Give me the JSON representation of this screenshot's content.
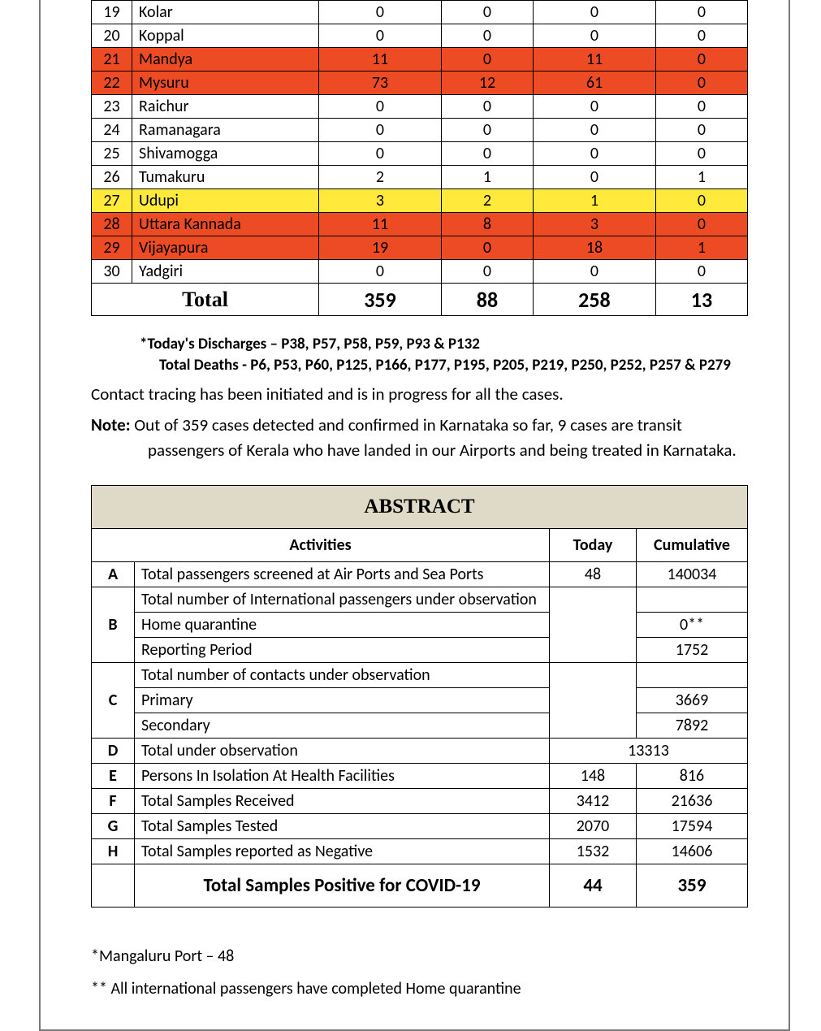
{
  "colors": {
    "highlight_red": "#ed4b23",
    "highlight_yellow": "#ffe93b",
    "abstract_header_bg": "#dedac7",
    "border": "#000000",
    "page_border": "#7a7a7a"
  },
  "district_table": {
    "col_widths_pct": [
      6,
      28,
      18,
      16,
      18,
      14
    ],
    "rows": [
      {
        "n": "19",
        "name": "Kolar",
        "v": [
          "0",
          "0",
          "0",
          "0"
        ],
        "hl": null
      },
      {
        "n": "20",
        "name": "Koppal",
        "v": [
          "0",
          "0",
          "0",
          "0"
        ],
        "hl": null
      },
      {
        "n": "21",
        "name": "Mandya",
        "v": [
          "11",
          "0",
          "11",
          "0"
        ],
        "hl": "red"
      },
      {
        "n": "22",
        "name": "Mysuru",
        "v": [
          "73",
          "12",
          "61",
          "0"
        ],
        "hl": "red"
      },
      {
        "n": "23",
        "name": "Raichur",
        "v": [
          "0",
          "0",
          "0",
          "0"
        ],
        "hl": null
      },
      {
        "n": "24",
        "name": "Ramanagara",
        "v": [
          "0",
          "0",
          "0",
          "0"
        ],
        "hl": null
      },
      {
        "n": "25",
        "name": "Shivamogga",
        "v": [
          "0",
          "0",
          "0",
          "0"
        ],
        "hl": null
      },
      {
        "n": "26",
        "name": "Tumakuru",
        "v": [
          "2",
          "1",
          "0",
          "1"
        ],
        "hl": null
      },
      {
        "n": "27",
        "name": "Udupi",
        "v": [
          "3",
          "2",
          "1",
          "0"
        ],
        "hl": "yellow"
      },
      {
        "n": "28",
        "name": "Uttara Kannada",
        "v": [
          "11",
          "8",
          "3",
          "0"
        ],
        "hl": "red"
      },
      {
        "n": "29",
        "name": "Vijayapura",
        "v": [
          "19",
          "0",
          "18",
          "1"
        ],
        "hl": "red"
      },
      {
        "n": "30",
        "name": "Yadgiri",
        "v": [
          "0",
          "0",
          "0",
          "0"
        ],
        "hl": null
      }
    ],
    "total_label": "Total",
    "total_values": [
      "359",
      "88",
      "258",
      "13"
    ]
  },
  "discharges_line": "*Today's Discharges – P38, P57, P58, P59, P93 & P132",
  "deaths_line": "Total Deaths - P6, P53, P60, P125, P166, P177, P195, P205, P219, P250, P252, P257 & P279",
  "contact_line": "Contact tracing has been initiated and is in progress for all the cases.",
  "note_lead": "Note:",
  "note_line1": " Out of 359 cases detected and confirmed in Karnataka so far, 9 cases are transit",
  "note_line2": "passengers of Kerala who have landed in our Airports and being treated in Karnataka.",
  "abstract": {
    "title": "ABSTRACT",
    "head_activities": "Activities",
    "head_today": "Today",
    "head_cumulative": "Cumulative",
    "rowA": {
      "code": "A",
      "act": "Total passengers screened at Air Ports and Sea Ports",
      "today": "48",
      "cum": "140034"
    },
    "rowB": {
      "code": "B",
      "act": "Total number of International passengers under observation",
      "sub1": {
        "label": "Home quarantine",
        "val": "0**"
      },
      "sub2": {
        "label": "Reporting Period",
        "val": "1752"
      }
    },
    "rowC": {
      "code": "C",
      "act": "Total number of contacts under observation",
      "sub1": {
        "label": "Primary",
        "val": "3669"
      },
      "sub2": {
        "label": "Secondary",
        "val": "7892"
      }
    },
    "rowD": {
      "code": "D",
      "act": "Total under observation",
      "wide": "13313"
    },
    "rowE": {
      "code": "E",
      "act": "Persons In Isolation At Health Facilities",
      "today": "148",
      "cum": "816"
    },
    "rowF": {
      "code": "F",
      "act": "Total Samples Received",
      "today": "3412",
      "cum": "21636"
    },
    "rowG": {
      "code": "G",
      "act": "Total Samples Tested",
      "today": "2070",
      "cum": "17594"
    },
    "rowH": {
      "code": "H",
      "act": "Total Samples reported as Negative",
      "today": "1532",
      "cum": "14606"
    },
    "summary": {
      "act": "Total Samples Positive for COVID-19",
      "today": "44",
      "cum": "359"
    }
  },
  "footnote1": "*Mangaluru Port – 48",
  "footnote2": "** All international passengers have completed Home quarantine"
}
